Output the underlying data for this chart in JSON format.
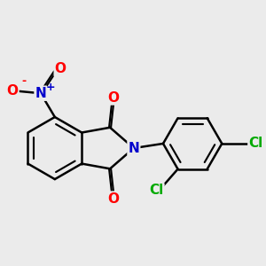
{
  "background_color": "#ebebeb",
  "bond_color": "#000000",
  "bond_width": 1.8,
  "figsize": [
    3.0,
    3.0
  ],
  "dpi": 100,
  "atom_colors": {
    "O": "#ff0000",
    "N_amine": "#0000cc",
    "N_nitro": "#0000cc",
    "Cl": "#00aa00"
  },
  "font_size": 11,
  "font_size_charge": 9
}
